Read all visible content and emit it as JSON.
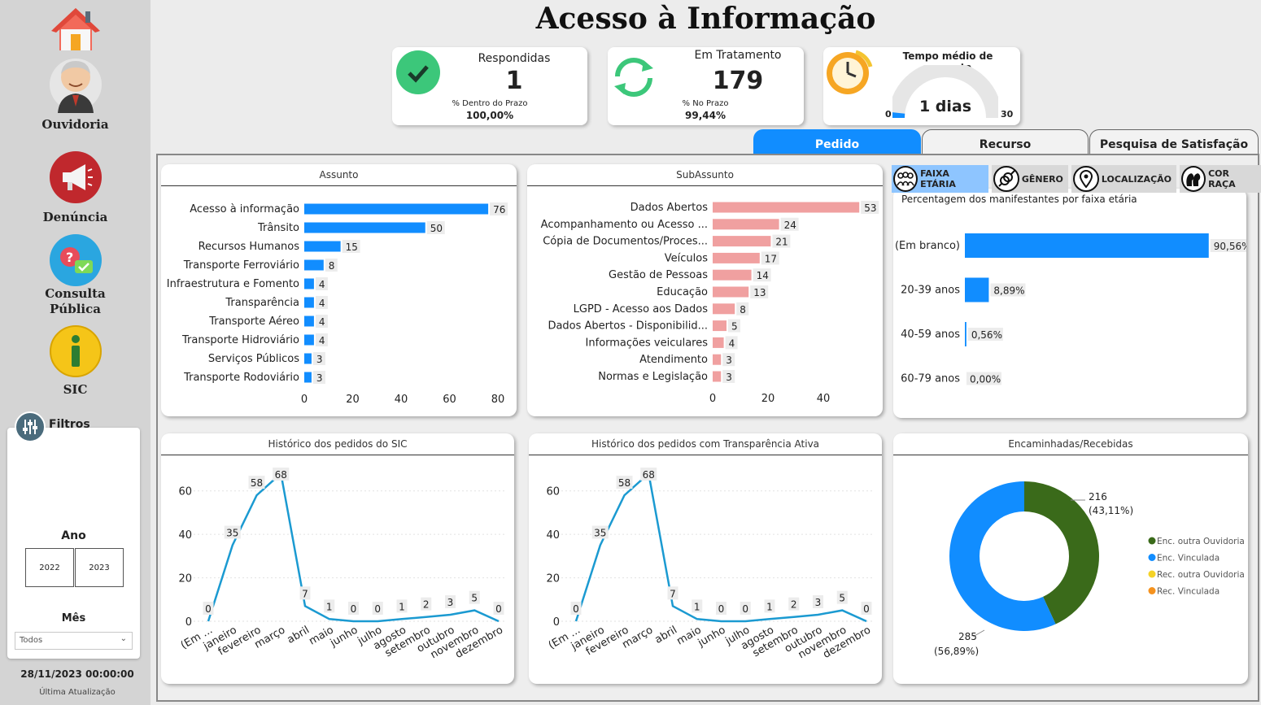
{
  "title": "Acesso à Informação",
  "sidebar": {
    "items": [
      {
        "label": "Ouvidoria"
      },
      {
        "label": "Denúncia"
      },
      {
        "label": "Consulta Pública",
        "line1": "Consulta",
        "line2": "Pública"
      },
      {
        "label": "SIC"
      }
    ],
    "filters_title": "Filtros",
    "ano_label": "Ano",
    "years": [
      "2022",
      "2023"
    ],
    "mes_label": "Mês",
    "mes_value": "Todos",
    "last_update": "28/11/2023 00:00:00",
    "last_update_label": "Última Atualização"
  },
  "kpis": {
    "respondidas": {
      "title": "Respondidas",
      "value": "1",
      "sub_label": "% Dentro do Prazo",
      "sub_value": "100,00%"
    },
    "tratamento": {
      "title": "Em Tratamento",
      "value": "179",
      "sub_label": "% No Prazo",
      "sub_value": "99,44%"
    },
    "tempo": {
      "title": "Tempo médio de resposta",
      "value": "1 dias",
      "min": "0",
      "max": "30",
      "gauge_value": 1,
      "gauge_max": 30
    }
  },
  "tabs": [
    {
      "label": "Pedido",
      "active": true
    },
    {
      "label": "Recurso"
    },
    {
      "label": "Pesquisa de Satisfação"
    }
  ],
  "segments": [
    {
      "label": "FAIXA ETÁRIA",
      "active": true
    },
    {
      "label": "GÊNERO"
    },
    {
      "label": "LOCALIZAÇÃO"
    },
    {
      "label": "COR RAÇA"
    }
  ],
  "colors": {
    "blue": "#118DFF",
    "pink": "#F0A0A0",
    "line": "#1B9AD1",
    "green": "#3A6A1A",
    "yellow": "#F5D327",
    "orange": "#F5921E"
  },
  "chart_data": [
    {
      "type": "bar",
      "title": "Assunto",
      "categories": [
        "Acesso à informação",
        "Trânsito",
        "Recursos Humanos",
        "Transporte Ferroviário",
        "Infraestrutura e Fomento",
        "Transparência",
        "Transporte Aéreo",
        "Transporte Hidroviário",
        "Serviços Públicos",
        "Transporte Rodoviário"
      ],
      "values": [
        76,
        50,
        15,
        8,
        4,
        4,
        4,
        4,
        3,
        3
      ],
      "xlim": [
        0,
        80
      ],
      "xticks": [
        "0",
        "20",
        "40",
        "60",
        "80"
      ],
      "orientation": "horizontal"
    },
    {
      "type": "bar",
      "title": "SubAssunto",
      "categories": [
        "Dados Abertos",
        "Acompanhamento ou Acesso ...",
        "Cópia de Documentos/Proces...",
        "Veículos",
        "Gestão de Pessoas",
        "Educação",
        "LGPD - Acesso aos Dados",
        "Dados Abertos - Disponibilid...",
        "Informações veiculares",
        "Atendimento",
        "Normas e Legislação"
      ],
      "values": [
        53,
        24,
        21,
        17,
        14,
        13,
        8,
        5,
        4,
        3,
        3
      ],
      "xlim": [
        0,
        55
      ],
      "xticks": [
        "0",
        "20",
        "40"
      ],
      "orientation": "horizontal"
    },
    {
      "type": "bar",
      "title": "Percentagem dos manifestantes por faixa etária",
      "categories": [
        "(Em branco)",
        "20-39 anos",
        "40-59 anos",
        "60-79 anos"
      ],
      "values": [
        90.56,
        8.89,
        0.56,
        0.0
      ],
      "labels": [
        "90,56%",
        "8,89%",
        "0,56%",
        "0,00%"
      ],
      "xlim": [
        0,
        100
      ],
      "orientation": "horizontal"
    },
    {
      "type": "line",
      "title": "Histórico dos pedidos do SIC",
      "categories": [
        "(Em ...",
        "janeiro",
        "fevereiro",
        "março",
        "abril",
        "maio",
        "junho",
        "julho",
        "agosto",
        "setembro",
        "outubro",
        "novembro",
        "dezembro"
      ],
      "values": [
        0,
        35,
        58,
        68,
        7,
        1,
        0,
        0,
        1,
        2,
        3,
        5,
        0
      ],
      "ylim": [
        0,
        70
      ],
      "yticks": [
        "0",
        "20",
        "40",
        "60"
      ]
    },
    {
      "type": "line",
      "title": "Histórico dos pedidos com Transparência Ativa",
      "categories": [
        "(Em ...",
        "janeiro",
        "fevereiro",
        "março",
        "abril",
        "maio",
        "junho",
        "julho",
        "agosto",
        "setembro",
        "outubro",
        "novembro",
        "dezembro"
      ],
      "values": [
        0,
        35,
        58,
        68,
        7,
        1,
        0,
        0,
        1,
        2,
        3,
        5,
        0
      ],
      "ylim": [
        0,
        70
      ],
      "yticks": [
        "0",
        "20",
        "40",
        "60"
      ]
    },
    {
      "type": "pie",
      "title": "Encaminhadas/Recebidas",
      "series": [
        {
          "name": "Enc. outra Ouvidoria",
          "value": 216,
          "label": "216",
          "pct": "(43,11%)"
        },
        {
          "name": "Enc. Vinculada",
          "value": 285,
          "label": "285",
          "pct": "(56,89%)"
        },
        {
          "name": "Rec. outra Ouvidoria",
          "value": 0
        },
        {
          "name": "Rec. Vinculada",
          "value": 0
        }
      ]
    }
  ]
}
